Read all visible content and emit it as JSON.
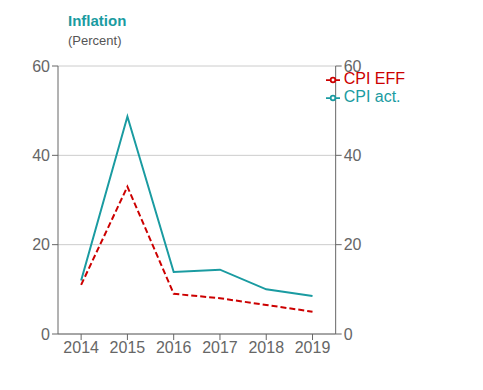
{
  "chart_data": {
    "type": "line",
    "title": "Inflation",
    "subtitle": "(Percent)",
    "x": [
      2014,
      2015,
      2016,
      2017,
      2018,
      2019
    ],
    "series": [
      {
        "name": "CPI act.",
        "color": "#1a9ba1",
        "line_style": "solid",
        "values": [
          12.0,
          48.7,
          13.9,
          14.4,
          10.0,
          8.5
        ]
      },
      {
        "name": "CPI EFF",
        "color": "#cc0000",
        "line_style": "dashed",
        "values": [
          11.0,
          33.0,
          9.0,
          8.0,
          6.5,
          5.0
        ]
      }
    ],
    "xlim": [
      2013.5,
      2019.5
    ],
    "xticks": [
      2014,
      2015,
      2016,
      2017,
      2018,
      2019
    ],
    "ylim": [
      0,
      60
    ],
    "yticks": [
      0,
      20,
      40,
      60
    ],
    "y2lim": [
      0,
      60
    ],
    "y2ticks": [
      0,
      20,
      40,
      60
    ],
    "grid": "y",
    "legend": "upper right"
  }
}
